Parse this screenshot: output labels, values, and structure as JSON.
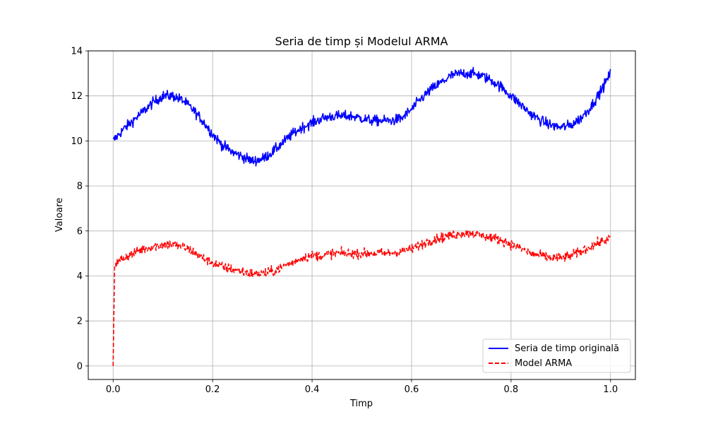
{
  "chart_data": {
    "type": "line",
    "title": "Seria de timp și Modelul ARMA",
    "xlabel": "Timp",
    "ylabel": "Valoare",
    "xlim": [
      -0.05,
      1.05
    ],
    "ylim": [
      -0.6,
      14
    ],
    "xticks": [
      0.0,
      0.2,
      0.4,
      0.6,
      0.8,
      1.0
    ],
    "xtick_labels": [
      "0.0",
      "0.2",
      "0.4",
      "0.6",
      "0.8",
      "1.0"
    ],
    "yticks": [
      0,
      2,
      4,
      6,
      8,
      10,
      12,
      14
    ],
    "ytick_labels": [
      "0",
      "2",
      "4",
      "6",
      "8",
      "10",
      "12",
      "14"
    ],
    "grid": true,
    "legend_position": "lower-right",
    "series": [
      {
        "name": "Seria de timp originală",
        "color": "#0000ff",
        "style": "solid",
        "x": [
          0.0,
          0.02,
          0.04,
          0.06,
          0.08,
          0.1,
          0.12,
          0.14,
          0.16,
          0.18,
          0.2,
          0.22,
          0.24,
          0.26,
          0.28,
          0.3,
          0.32,
          0.34,
          0.36,
          0.38,
          0.4,
          0.42,
          0.44,
          0.46,
          0.48,
          0.5,
          0.52,
          0.54,
          0.56,
          0.58,
          0.6,
          0.62,
          0.64,
          0.66,
          0.68,
          0.7,
          0.72,
          0.74,
          0.76,
          0.78,
          0.8,
          0.82,
          0.84,
          0.86,
          0.88,
          0.9,
          0.92,
          0.94,
          0.96,
          0.98,
          1.0
        ],
        "y": [
          10.0,
          10.5,
          10.9,
          11.3,
          11.7,
          12.0,
          12.0,
          11.8,
          11.4,
          10.9,
          10.3,
          9.8,
          9.5,
          9.3,
          9.1,
          9.2,
          9.5,
          9.9,
          10.3,
          10.6,
          10.8,
          11.0,
          11.1,
          11.1,
          11.1,
          11.0,
          10.9,
          10.9,
          10.9,
          11.0,
          11.4,
          11.9,
          12.3,
          12.6,
          12.9,
          13.0,
          13.0,
          12.9,
          12.7,
          12.4,
          12.0,
          11.6,
          11.2,
          10.9,
          10.7,
          10.6,
          10.7,
          11.0,
          11.5,
          12.2,
          13.0
        ]
      },
      {
        "name": "Model ARMA",
        "color": "#ff0000",
        "style": "dashed",
        "x": [
          0.0,
          0.003,
          0.02,
          0.04,
          0.06,
          0.08,
          0.1,
          0.12,
          0.14,
          0.16,
          0.18,
          0.2,
          0.22,
          0.24,
          0.26,
          0.28,
          0.3,
          0.32,
          0.34,
          0.36,
          0.38,
          0.4,
          0.42,
          0.44,
          0.46,
          0.48,
          0.5,
          0.52,
          0.54,
          0.56,
          0.58,
          0.6,
          0.62,
          0.64,
          0.66,
          0.68,
          0.7,
          0.72,
          0.74,
          0.76,
          0.78,
          0.8,
          0.82,
          0.84,
          0.86,
          0.88,
          0.9,
          0.92,
          0.94,
          0.96,
          0.98,
          1.0
        ],
        "y": [
          0.0,
          4.5,
          4.8,
          5.0,
          5.2,
          5.3,
          5.4,
          5.4,
          5.3,
          5.1,
          4.8,
          4.6,
          4.4,
          4.3,
          4.2,
          4.1,
          4.1,
          4.2,
          4.4,
          4.6,
          4.8,
          4.9,
          4.9,
          5.0,
          5.0,
          5.0,
          5.0,
          5.0,
          5.0,
          5.0,
          5.1,
          5.2,
          5.4,
          5.6,
          5.7,
          5.8,
          5.9,
          5.9,
          5.8,
          5.7,
          5.6,
          5.4,
          5.2,
          5.0,
          4.9,
          4.8,
          4.8,
          4.9,
          5.1,
          5.3,
          5.5,
          5.7
        ]
      }
    ]
  }
}
